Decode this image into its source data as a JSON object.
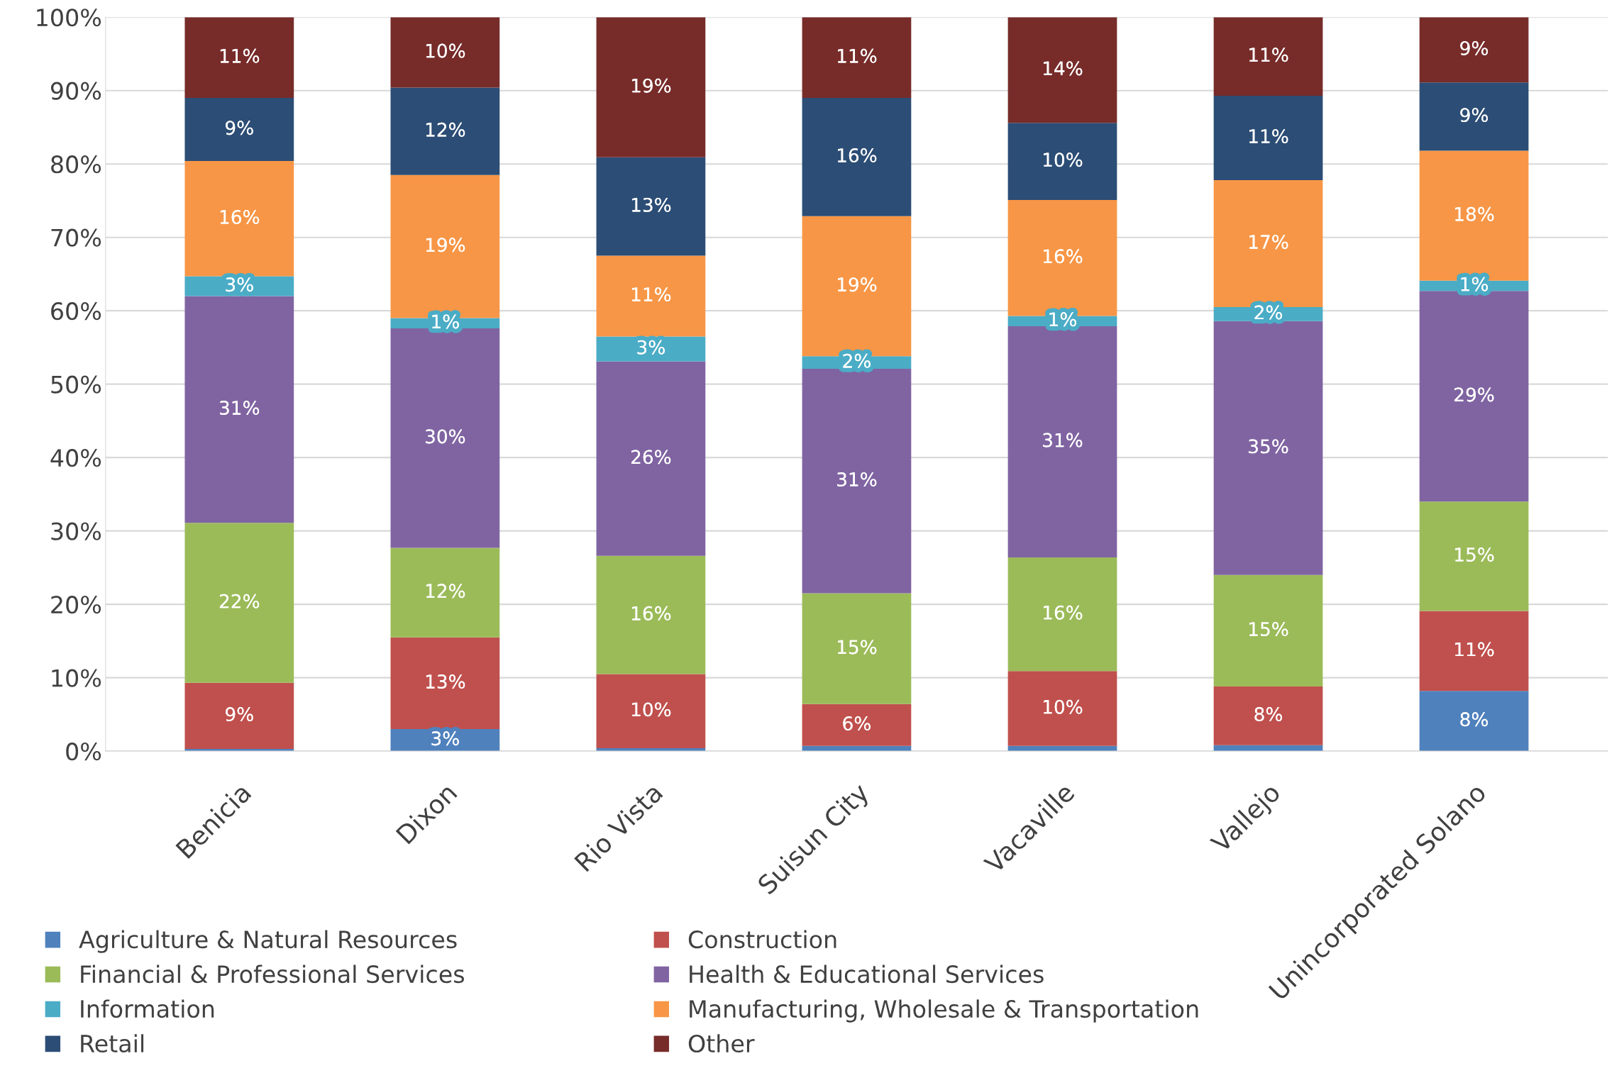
{
  "chart_data": {
    "type": "bar",
    "stacked": true,
    "categories": [
      "Benicia",
      "Dixon",
      "Rio Vista",
      "Suisun City",
      "Vacaville",
      "Vallejo",
      "Unincorporated Solano"
    ],
    "ylim": [
      0,
      100
    ],
    "yticks": [
      {
        "value": 0,
        "label": "0%"
      },
      {
        "value": 10,
        "label": "10%"
      },
      {
        "value": 20,
        "label": "20%"
      },
      {
        "value": 30,
        "label": "30%"
      },
      {
        "value": 40,
        "label": "40%"
      },
      {
        "value": 50,
        "label": "50%"
      },
      {
        "value": 60,
        "label": "60%"
      },
      {
        "value": 70,
        "label": "70%"
      },
      {
        "value": 80,
        "label": "80%"
      },
      {
        "value": 90,
        "label": "90%"
      },
      {
        "value": 100,
        "label": "100%"
      }
    ],
    "grid": "y",
    "legend": "bottom",
    "series": [
      {
        "name": "Agriculture & Natural Resources",
        "color": "#4f81bd",
        "values": [
          0.3,
          3.0,
          0.4,
          0.7,
          0.7,
          0.8,
          8.2
        ],
        "value_labels": [
          null,
          "3%",
          null,
          null,
          null,
          null,
          "8%"
        ]
      },
      {
        "name": "Construction",
        "color": "#c0504d",
        "values": [
          9.0,
          12.5,
          10.1,
          5.7,
          10.2,
          8.0,
          10.9
        ],
        "value_labels": [
          "9%",
          "13%",
          "10%",
          "6%",
          "10%",
          "8%",
          "11%"
        ]
      },
      {
        "name": "Financial & Professional Services",
        "color": "#9bbb59",
        "values": [
          21.8,
          12.2,
          16.1,
          15.1,
          15.5,
          15.2,
          14.9
        ],
        "value_labels": [
          "22%",
          "12%",
          "16%",
          "15%",
          "16%",
          "15%",
          "15%"
        ]
      },
      {
        "name": "Health & Educational Services",
        "color": "#8064a2",
        "values": [
          30.9,
          29.9,
          26.5,
          30.6,
          31.5,
          34.6,
          28.7
        ],
        "value_labels": [
          "31%",
          "30%",
          "26%",
          "31%",
          "31%",
          "35%",
          "29%"
        ]
      },
      {
        "name": "Information",
        "color": "#4bacc6",
        "values": [
          2.7,
          1.4,
          3.4,
          1.7,
          1.4,
          1.9,
          1.4
        ],
        "value_labels": [
          "3%",
          "1%",
          "3%",
          "2%",
          "1%",
          "2%",
          "1%"
        ]
      },
      {
        "name": "Manufacturing, Wholesale & Transportation",
        "color": "#f79646",
        "values": [
          15.7,
          19.5,
          11.0,
          19.1,
          15.8,
          17.3,
          17.7
        ],
        "value_labels": [
          "16%",
          "19%",
          "11%",
          "19%",
          "16%",
          "17%",
          "18%"
        ]
      },
      {
        "name": "Retail",
        "color": "#2c4d75",
        "values": [
          8.6,
          11.9,
          13.4,
          16.1,
          10.5,
          11.5,
          9.3
        ],
        "value_labels": [
          "9%",
          "12%",
          "13%",
          "16%",
          "10%",
          "11%",
          "9%"
        ]
      },
      {
        "name": "Other",
        "color": "#772c2a",
        "values": [
          11.0,
          9.6,
          19.1,
          11.0,
          14.4,
          10.7,
          8.9
        ],
        "value_labels": [
          "11%",
          "10%",
          "19%",
          "11%",
          "14%",
          "11%",
          "9%"
        ]
      }
    ]
  }
}
